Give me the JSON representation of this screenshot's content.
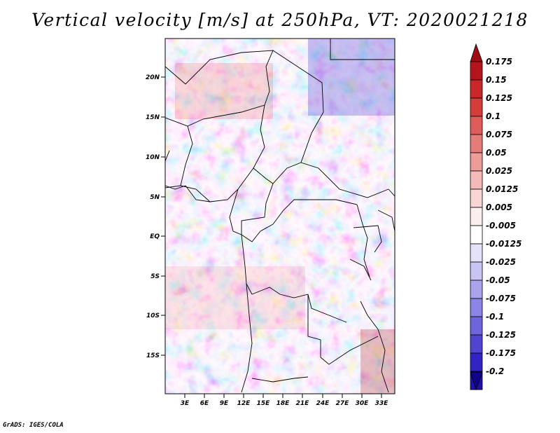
{
  "title": "Vertical velocity [m/s] at 250hPa, VT: 2020021218",
  "footer": "GrADS: IGES/COLA",
  "map": {
    "lat_labels": [
      "20N",
      "15N",
      "10N",
      "5N",
      "EQ",
      "5S",
      "10S",
      "15S"
    ],
    "lon_labels": [
      "3E",
      "6E",
      "9E",
      "12E",
      "15E",
      "18E",
      "21E",
      "24E",
      "27E",
      "30E",
      "33E"
    ]
  },
  "colorbar": {
    "labels": [
      "0.175",
      "0.15",
      "0.125",
      "0.1",
      "0.075",
      "0.05",
      "0.025",
      "0.0125",
      "0.005",
      "-0.005",
      "-0.0125",
      "-0.025",
      "-0.05",
      "-0.075",
      "-0.1",
      "-0.125",
      "-0.175",
      "-0.2"
    ],
    "colors": [
      "#b4141c",
      "#c8282a",
      "#d63c3a",
      "#e05c5a",
      "#e67c78",
      "#ee9c98",
      "#f4bab8",
      "#f8d6d4",
      "#fbeeed",
      "#ffffff",
      "#e4e2fa",
      "#c8c4f6",
      "#aaa4ee",
      "#8c84e6",
      "#6e64dc",
      "#5044d0",
      "#3224c2",
      "#1e10a8",
      "#14089a"
    ]
  }
}
